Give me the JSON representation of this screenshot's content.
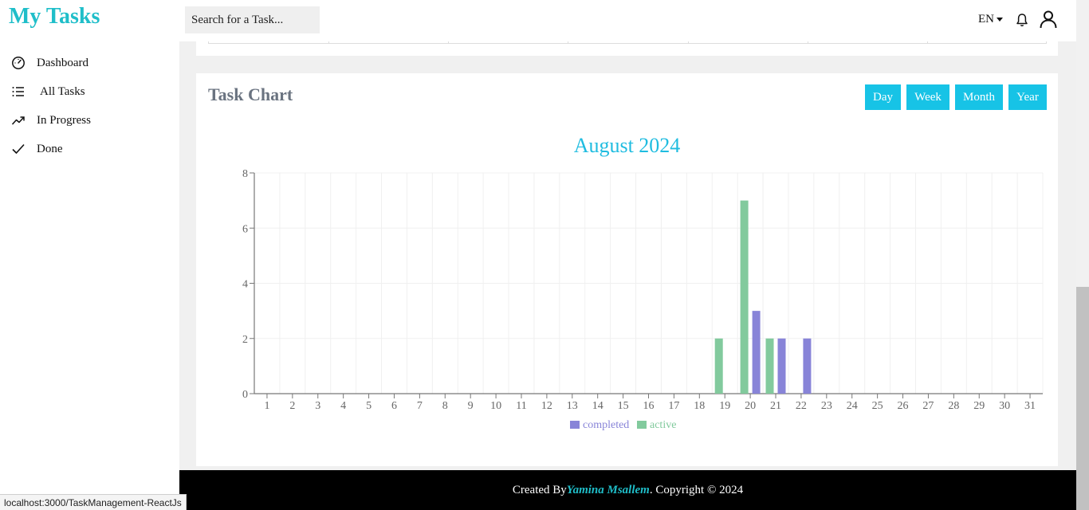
{
  "app": {
    "title": "My Tasks"
  },
  "search": {
    "placeholder": "Search for a Task..."
  },
  "header": {
    "language": "EN",
    "icons": [
      "bell-icon",
      "user-icon"
    ]
  },
  "sidebar": {
    "items": [
      {
        "label": "Dashboard",
        "icon": "dashboard-icon"
      },
      {
        "label": "All Tasks",
        "icon": "list-icon"
      },
      {
        "label": "In Progress",
        "icon": "trending-up-icon"
      },
      {
        "label": "Done",
        "icon": "check-icon"
      }
    ]
  },
  "card": {
    "title": "Task Chart",
    "buttons": [
      "Day",
      "Week",
      "Month",
      "Year"
    ]
  },
  "chart_data": {
    "type": "bar",
    "title": "August 2024",
    "categories": [
      "1",
      "2",
      "3",
      "4",
      "5",
      "6",
      "7",
      "8",
      "9",
      "10",
      "11",
      "12",
      "13",
      "14",
      "15",
      "16",
      "17",
      "18",
      "19",
      "20",
      "21",
      "22",
      "23",
      "24",
      "25",
      "26",
      "27",
      "28",
      "29",
      "30",
      "31"
    ],
    "series": [
      {
        "name": "completed",
        "color": "#8884d8",
        "values": [
          0,
          0,
          0,
          0,
          0,
          0,
          0,
          0,
          0,
          0,
          0,
          0,
          0,
          0,
          0,
          0,
          0,
          0,
          0,
          3,
          2,
          2,
          0,
          0,
          0,
          0,
          0,
          0,
          0,
          0,
          0
        ]
      },
      {
        "name": "active",
        "color": "#82ca9d",
        "values": [
          0,
          0,
          0,
          0,
          0,
          0,
          0,
          0,
          0,
          0,
          0,
          0,
          0,
          0,
          0,
          0,
          0,
          0,
          2,
          7,
          2,
          0,
          0,
          0,
          0,
          0,
          0,
          0,
          0,
          0,
          0
        ]
      }
    ],
    "ylim": [
      0,
      8
    ],
    "yticks": [
      0,
      2,
      4,
      6,
      8
    ],
    "grid": true,
    "legend": "bottom"
  },
  "footer": {
    "prefix": "Created By",
    "author": "Yamina Msallem",
    "suffix": ". Copyright © 2024"
  },
  "status_bar": {
    "url": "localhost:3000/TaskManagement-ReactJs"
  }
}
